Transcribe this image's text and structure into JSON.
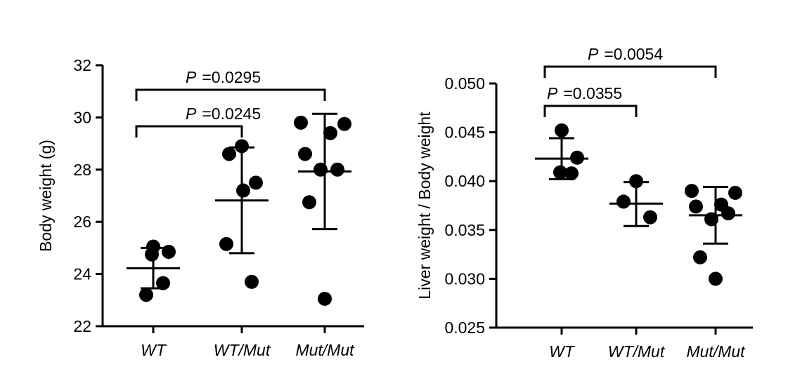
{
  "chart_data": [
    {
      "type": "scatter",
      "title": "",
      "xlabel": "",
      "ylabel": "Body weight (g)",
      "ylim": [
        22,
        32
      ],
      "yticks": [
        "22",
        "24",
        "26",
        "28",
        "30",
        "32"
      ],
      "tick_values": [
        22,
        24,
        26,
        28,
        30,
        32
      ],
      "categories": [
        "WT",
        "WT/Mut",
        "Mut/Mut"
      ],
      "series": [
        {
          "category": "WT",
          "points": [
            25.05,
            24.85,
            24.75,
            23.65,
            23.2
          ],
          "mean": 24.22,
          "sd_low": 23.45,
          "sd_high": 25.0
        },
        {
          "category": "WT/Mut",
          "points": [
            28.9,
            28.6,
            27.5,
            27.2,
            25.15,
            23.7
          ],
          "mean": 26.82,
          "sd_low": 24.8,
          "sd_high": 28.85
        },
        {
          "category": "Mut/Mut",
          "points": [
            29.8,
            29.75,
            29.4,
            28.6,
            28.0,
            28.0,
            26.75,
            23.05
          ],
          "mean": 27.93,
          "sd_low": 25.72,
          "sd_high": 30.14
        }
      ],
      "annotations": [
        {
          "p_label": "P",
          "p_value": "=0.0245",
          "from": "WT",
          "to": "WT/Mut",
          "level": 1
        },
        {
          "p_label": "P",
          "p_value": "=0.0295",
          "from": "WT",
          "to": "Mut/Mut",
          "level": 2
        }
      ]
    },
    {
      "type": "scatter",
      "title": "",
      "xlabel": "",
      "ylabel": "Liver weight / Body weight",
      "ylim": [
        0.025,
        0.05
      ],
      "yticks": [
        "0.025",
        "0.030",
        "0.035",
        "0.040",
        "0.045",
        "0.050"
      ],
      "tick_values": [
        0.025,
        0.03,
        0.035,
        0.04,
        0.045,
        0.05
      ],
      "categories": [
        "WT",
        "WT/Mut",
        "Mut/Mut"
      ],
      "series": [
        {
          "category": "WT",
          "points": [
            0.0452,
            0.0424,
            0.0409,
            0.0408
          ],
          "mean": 0.0423,
          "sd_low": 0.0402,
          "sd_high": 0.0444
        },
        {
          "category": "WT/Mut",
          "points": [
            0.04,
            0.0379,
            0.0363
          ],
          "mean": 0.0377,
          "sd_low": 0.0354,
          "sd_high": 0.0399
        },
        {
          "category": "Mut/Mut",
          "points": [
            0.039,
            0.0388,
            0.0376,
            0.0374,
            0.0367,
            0.0361,
            0.0322,
            0.03
          ],
          "mean": 0.0365,
          "sd_low": 0.0336,
          "sd_high": 0.0394
        }
      ],
      "annotations": [
        {
          "p_label": "P",
          "p_value": "=0.0355",
          "from": "WT",
          "to": "WT/Mut",
          "level": 1
        },
        {
          "p_label": "P",
          "p_value": "=0.0054",
          "from": "WT",
          "to": "Mut/Mut",
          "level": 2
        }
      ]
    }
  ]
}
